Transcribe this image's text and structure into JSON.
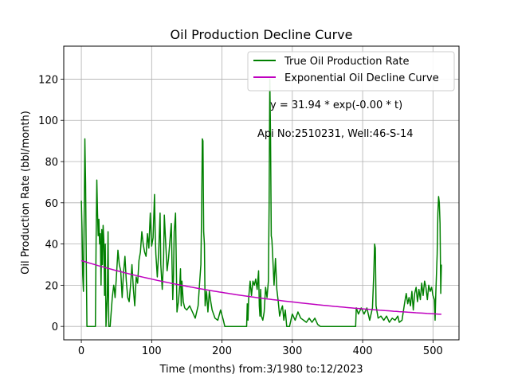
{
  "chart_data": {
    "type": "line",
    "title": "Oil Production Decline Curve",
    "xlabel": "Time (months) from:3/1980 to:12/2023",
    "ylabel": "Oil Production Rate (bbl/month)",
    "xlim": [
      -25,
      537
    ],
    "ylim": [
      -6.5,
      136
    ],
    "xticks": [
      0,
      100,
      200,
      300,
      400,
      500
    ],
    "yticks": [
      0,
      20,
      40,
      60,
      80,
      100,
      120
    ],
    "grid": true,
    "legend_position": "top-right",
    "annotations": [
      {
        "text": "y = 31.94 * exp(-0.00 * t)",
        "x": 268,
        "y": 107
      },
      {
        "text": "Api No:2510231, Well:46-S-14",
        "x": 250,
        "y": 93
      }
    ],
    "series": [
      {
        "name": "True Oil Production Rate",
        "color": "#008000",
        "points": [
          [
            0,
            61
          ],
          [
            1,
            48
          ],
          [
            2,
            25
          ],
          [
            3,
            17
          ],
          [
            4,
            52
          ],
          [
            5,
            91
          ],
          [
            6,
            70
          ],
          [
            7,
            35
          ],
          [
            8,
            0
          ],
          [
            12,
            0
          ],
          [
            16,
            0
          ],
          [
            20,
            0
          ],
          [
            21,
            42
          ],
          [
            22,
            71
          ],
          [
            23,
            55
          ],
          [
            24,
            44
          ],
          [
            25,
            52
          ],
          [
            26,
            40
          ],
          [
            27,
            45
          ],
          [
            28,
            20
          ],
          [
            29,
            47
          ],
          [
            30,
            30
          ],
          [
            31,
            49
          ],
          [
            32,
            42
          ],
          [
            33,
            15
          ],
          [
            34,
            40
          ],
          [
            35,
            0
          ],
          [
            37,
            15
          ],
          [
            38,
            46
          ],
          [
            39,
            0
          ],
          [
            41,
            0
          ],
          [
            44,
            14
          ],
          [
            46,
            20
          ],
          [
            47,
            18
          ],
          [
            48,
            14
          ],
          [
            50,
            25
          ],
          [
            52,
            37
          ],
          [
            54,
            30
          ],
          [
            56,
            27
          ],
          [
            58,
            14
          ],
          [
            60,
            26
          ],
          [
            62,
            34
          ],
          [
            64,
            22
          ],
          [
            66,
            14
          ],
          [
            68,
            12
          ],
          [
            70,
            20
          ],
          [
            72,
            30
          ],
          [
            74,
            18
          ],
          [
            76,
            10
          ],
          [
            78,
            24
          ],
          [
            80,
            21
          ],
          [
            82,
            32
          ],
          [
            84,
            36
          ],
          [
            86,
            46
          ],
          [
            88,
            40
          ],
          [
            90,
            36
          ],
          [
            92,
            34
          ],
          [
            94,
            45
          ],
          [
            96,
            38
          ],
          [
            98,
            55
          ],
          [
            100,
            39
          ],
          [
            102,
            43
          ],
          [
            104,
            64
          ],
          [
            105,
            46
          ],
          [
            106,
            35
          ],
          [
            108,
            24
          ],
          [
            110,
            36
          ],
          [
            112,
            55
          ],
          [
            113,
            30
          ],
          [
            115,
            18
          ],
          [
            117,
            33
          ],
          [
            118,
            54
          ],
          [
            120,
            40
          ],
          [
            122,
            27
          ],
          [
            124,
            33
          ],
          [
            126,
            42
          ],
          [
            128,
            50
          ],
          [
            129,
            30
          ],
          [
            130,
            13
          ],
          [
            131,
            24
          ],
          [
            132,
            46
          ],
          [
            134,
            55
          ],
          [
            136,
            7
          ],
          [
            138,
            12
          ],
          [
            140,
            20
          ],
          [
            141,
            28
          ],
          [
            142,
            10
          ],
          [
            143,
            22
          ],
          [
            145,
            12
          ],
          [
            147,
            9
          ],
          [
            150,
            8
          ],
          [
            154,
            10
          ],
          [
            158,
            7
          ],
          [
            162,
            4
          ],
          [
            166,
            10
          ],
          [
            168,
            20
          ],
          [
            170,
            30
          ],
          [
            171,
            55
          ],
          [
            172,
            91
          ],
          [
            173,
            90
          ],
          [
            174,
            46
          ],
          [
            175,
            40
          ],
          [
            176,
            10
          ],
          [
            178,
            17
          ],
          [
            180,
            7
          ],
          [
            182,
            17
          ],
          [
            184,
            12
          ],
          [
            186,
            8
          ],
          [
            190,
            4
          ],
          [
            194,
            3
          ],
          [
            198,
            8
          ],
          [
            202,
            3
          ],
          [
            204,
            0
          ],
          [
            210,
            0
          ],
          [
            220,
            0
          ],
          [
            230,
            0
          ],
          [
            235,
            0
          ],
          [
            236,
            11
          ],
          [
            237,
            3
          ],
          [
            238,
            14
          ],
          [
            240,
            22
          ],
          [
            242,
            15
          ],
          [
            244,
            22
          ],
          [
            246,
            20
          ],
          [
            248,
            23
          ],
          [
            250,
            18
          ],
          [
            252,
            27
          ],
          [
            253,
            10
          ],
          [
            254,
            5
          ],
          [
            255,
            18
          ],
          [
            256,
            5
          ],
          [
            258,
            3
          ],
          [
            260,
            7
          ],
          [
            262,
            19
          ],
          [
            264,
            14
          ],
          [
            266,
            22
          ],
          [
            267,
            58
          ],
          [
            268,
            120
          ],
          [
            269,
            92
          ],
          [
            270,
            44
          ],
          [
            271,
            42
          ],
          [
            272,
            35
          ],
          [
            274,
            20
          ],
          [
            276,
            33
          ],
          [
            278,
            18
          ],
          [
            280,
            12
          ],
          [
            282,
            5
          ],
          [
            284,
            8
          ],
          [
            286,
            10
          ],
          [
            288,
            3
          ],
          [
            290,
            8
          ],
          [
            292,
            0
          ],
          [
            296,
            0
          ],
          [
            300,
            6
          ],
          [
            304,
            3
          ],
          [
            308,
            7
          ],
          [
            312,
            4
          ],
          [
            316,
            3
          ],
          [
            320,
            2
          ],
          [
            324,
            4
          ],
          [
            328,
            2
          ],
          [
            332,
            4
          ],
          [
            336,
            1
          ],
          [
            340,
            0
          ],
          [
            390,
            0
          ],
          [
            391,
            9
          ],
          [
            394,
            6
          ],
          [
            398,
            9
          ],
          [
            402,
            6
          ],
          [
            406,
            9
          ],
          [
            410,
            3
          ],
          [
            414,
            9
          ],
          [
            416,
            27
          ],
          [
            417,
            40
          ],
          [
            418,
            38
          ],
          [
            419,
            10
          ],
          [
            422,
            4
          ],
          [
            426,
            5
          ],
          [
            430,
            3
          ],
          [
            434,
            5
          ],
          [
            438,
            2
          ],
          [
            442,
            4
          ],
          [
            446,
            3
          ],
          [
            450,
            5
          ],
          [
            452,
            2
          ],
          [
            456,
            3
          ],
          [
            460,
            12
          ],
          [
            462,
            16
          ],
          [
            464,
            11
          ],
          [
            466,
            14
          ],
          [
            468,
            10
          ],
          [
            470,
            17
          ],
          [
            472,
            8
          ],
          [
            474,
            16
          ],
          [
            476,
            19
          ],
          [
            478,
            12
          ],
          [
            480,
            18
          ],
          [
            482,
            13
          ],
          [
            484,
            21
          ],
          [
            486,
            15
          ],
          [
            488,
            22
          ],
          [
            490,
            19
          ],
          [
            492,
            13
          ],
          [
            494,
            20
          ],
          [
            496,
            17
          ],
          [
            498,
            19
          ],
          [
            500,
            15
          ],
          [
            502,
            13
          ],
          [
            503,
            3
          ],
          [
            504,
            16
          ],
          [
            506,
            35
          ],
          [
            507,
            55
          ],
          [
            508,
            63
          ],
          [
            509,
            60
          ],
          [
            510,
            50
          ],
          [
            511,
            16
          ],
          [
            512,
            30
          ]
        ]
      },
      {
        "name": "Exponential Oil Decline Curve",
        "color": "#bf00bf",
        "model": {
          "a": 31.94,
          "b": 0.0033,
          "t_start": 0,
          "t_end": 512
        }
      }
    ]
  }
}
